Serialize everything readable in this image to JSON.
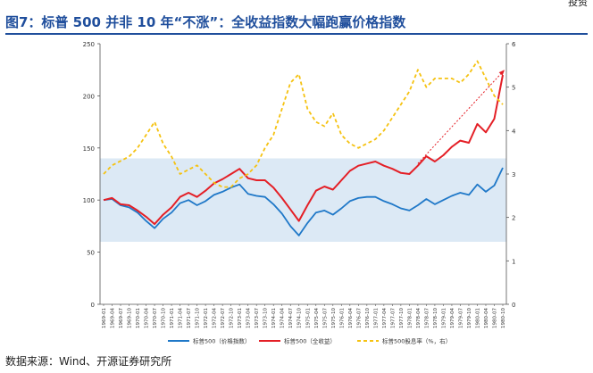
{
  "figure": {
    "title": "图7：标普 500 并非 10 年“不涨”：全收益指数大幅跑赢价格指数",
    "source": "数据来源：Wind、开源证券研究所",
    "corner_text": "投资"
  },
  "colors": {
    "brand": "#1f4e9c",
    "price": "#1f78c8",
    "total": "#e41f26",
    "yield": "#f5c211",
    "band": "#dce9f5",
    "arrow": "#e41f26"
  },
  "chart_data": {
    "type": "line",
    "title": "",
    "xlabel": "",
    "ylabel_left": "",
    "ylabel_right": "",
    "ylim_left": [
      0,
      250
    ],
    "ylim_right": [
      0,
      6
    ],
    "left_ticks": [
      "0",
      "50",
      "100",
      "150",
      "200",
      "250"
    ],
    "right_ticks": [
      "0",
      "1",
      "2",
      "3",
      "4",
      "5",
      "6"
    ],
    "band_left_range": [
      60,
      140
    ],
    "x_labels": [
      "1969-01",
      "1969-04",
      "1969-07",
      "1969-10",
      "1970-01",
      "1970-04",
      "1970-07",
      "1970-10",
      "1971-01",
      "1971-04",
      "1971-07",
      "1971-10",
      "1972-01",
      "1972-04",
      "1972-07",
      "1972-10",
      "1973-01",
      "1973-04",
      "1973-07",
      "1973-10",
      "1974-01",
      "1974-04",
      "1974-07",
      "1974-10",
      "1975-01",
      "1975-04",
      "1975-07",
      "1975-10",
      "1976-01",
      "1976-04",
      "1976-07",
      "1976-10",
      "1977-01",
      "1977-04",
      "1977-07",
      "1977-10",
      "1978-01",
      "1978-04",
      "1978-07",
      "1978-10",
      "1979-01",
      "1979-04",
      "1979-07",
      "1979-10",
      "1980-01",
      "1980-04",
      "1980-07",
      "1980-10"
    ],
    "legend": [
      "标普500（价格指数）",
      "标普500（全收益）",
      "标普500股息率（%，右）"
    ],
    "series": [
      {
        "name": "标普500（价格指数）",
        "axis": "left",
        "style": "solid",
        "values": [
          100,
          101,
          95,
          93,
          88,
          80,
          73,
          82,
          88,
          97,
          100,
          95,
          99,
          105,
          108,
          112,
          115,
          106,
          104,
          103,
          96,
          87,
          75,
          66,
          78,
          88,
          90,
          86,
          92,
          99,
          102,
          103,
          103,
          99,
          96,
          92,
          90,
          95,
          101,
          96,
          100,
          104,
          107,
          105,
          115,
          108,
          114,
          131
        ]
      },
      {
        "name": "标普500（全收益）",
        "axis": "left",
        "style": "solid",
        "values": [
          100,
          102,
          96,
          95,
          90,
          84,
          77,
          86,
          93,
          103,
          107,
          103,
          109,
          116,
          120,
          125,
          130,
          121,
          119,
          119,
          112,
          102,
          91,
          80,
          95,
          109,
          113,
          110,
          119,
          128,
          133,
          135,
          137,
          133,
          130,
          126,
          125,
          133,
          142,
          137,
          143,
          151,
          157,
          155,
          173,
          165,
          178,
          220
        ]
      },
      {
        "name": "标普500股息率（%，右）",
        "axis": "right",
        "style": "dashed",
        "values": [
          3.0,
          3.2,
          3.3,
          3.4,
          3.6,
          3.9,
          4.2,
          3.7,
          3.4,
          3.0,
          3.1,
          3.2,
          3.0,
          2.8,
          2.7,
          2.7,
          2.9,
          3.0,
          3.2,
          3.6,
          3.9,
          4.5,
          5.1,
          5.3,
          4.5,
          4.2,
          4.1,
          4.4,
          3.9,
          3.7,
          3.6,
          3.7,
          3.8,
          4.0,
          4.3,
          4.6,
          4.9,
          5.4,
          5.0,
          5.2,
          5.2,
          5.2,
          5.1,
          5.3,
          5.6,
          5.2,
          4.8,
          4.6
        ]
      }
    ]
  }
}
